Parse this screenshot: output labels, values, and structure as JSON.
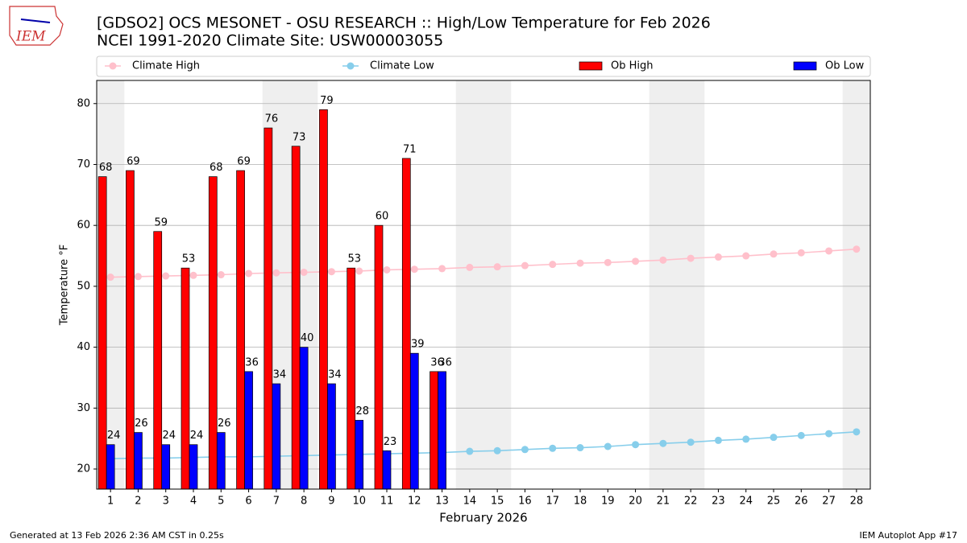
{
  "logo_text": "IEM",
  "footer_left": "Generated at 13 Feb 2026 2:36 AM CST in 0.25s",
  "footer_right": "IEM Autoplot App #17",
  "chart_data": {
    "type": "bar",
    "title": "[GDSO2] OCS MESONET - OSU RESEARCH :: High/Low Temperature for Feb 2026",
    "subtitle": "NCEI 1991-2020 Climate Site: USW00003055",
    "x_label": "February 2026",
    "y_label": "Temperature °F",
    "categories": [
      "1",
      "2",
      "3",
      "4",
      "5",
      "6",
      "7",
      "8",
      "9",
      "10",
      "11",
      "12",
      "13",
      "14",
      "15",
      "16",
      "17",
      "18",
      "19",
      "20",
      "21",
      "22",
      "23",
      "24",
      "25",
      "26",
      "27",
      "28"
    ],
    "weekend_days": [
      1,
      7,
      8,
      14,
      15,
      21,
      22,
      28
    ],
    "weekend_color": "#efefef",
    "ylim": [
      16.7,
      83.8
    ],
    "yticks": [
      20,
      30,
      40,
      50,
      60,
      70,
      80
    ],
    "grid": true,
    "series": [
      {
        "name": "Climate High",
        "type": "line",
        "color": "#ffc0cb",
        "values": [
          51.5,
          51.6,
          51.7,
          51.8,
          51.9,
          52.1,
          52.2,
          52.3,
          52.4,
          52.5,
          52.7,
          52.8,
          52.9,
          53.1,
          53.2,
          53.4,
          53.6,
          53.8,
          53.9,
          54.1,
          54.3,
          54.6,
          54.8,
          55.0,
          55.3,
          55.5,
          55.8,
          56.1
        ]
      },
      {
        "name": "Climate Low",
        "type": "line",
        "color": "#87ceeb",
        "values": [
          21.7,
          21.8,
          21.8,
          21.9,
          22.0,
          22.0,
          22.1,
          22.2,
          22.3,
          22.4,
          22.5,
          22.6,
          22.7,
          22.9,
          23.0,
          23.2,
          23.4,
          23.5,
          23.7,
          24.0,
          24.2,
          24.4,
          24.7,
          24.9,
          25.2,
          25.5,
          25.8,
          26.1
        ]
      },
      {
        "name": "Ob High",
        "type": "bar",
        "color": "#ff0000",
        "values": [
          68,
          69,
          59,
          53,
          68,
          69,
          76,
          73,
          79,
          53,
          60,
          71,
          36,
          null,
          null,
          null,
          null,
          null,
          null,
          null,
          null,
          null,
          null,
          null,
          null,
          null,
          null,
          null
        ]
      },
      {
        "name": "Ob Low",
        "type": "bar",
        "color": "#0000ff",
        "values": [
          24,
          26,
          24,
          24,
          26,
          36,
          34,
          40,
          34,
          28,
          23,
          39,
          36,
          null,
          null,
          null,
          null,
          null,
          null,
          null,
          null,
          null,
          null,
          null,
          null,
          null,
          null,
          null
        ]
      }
    ]
  }
}
